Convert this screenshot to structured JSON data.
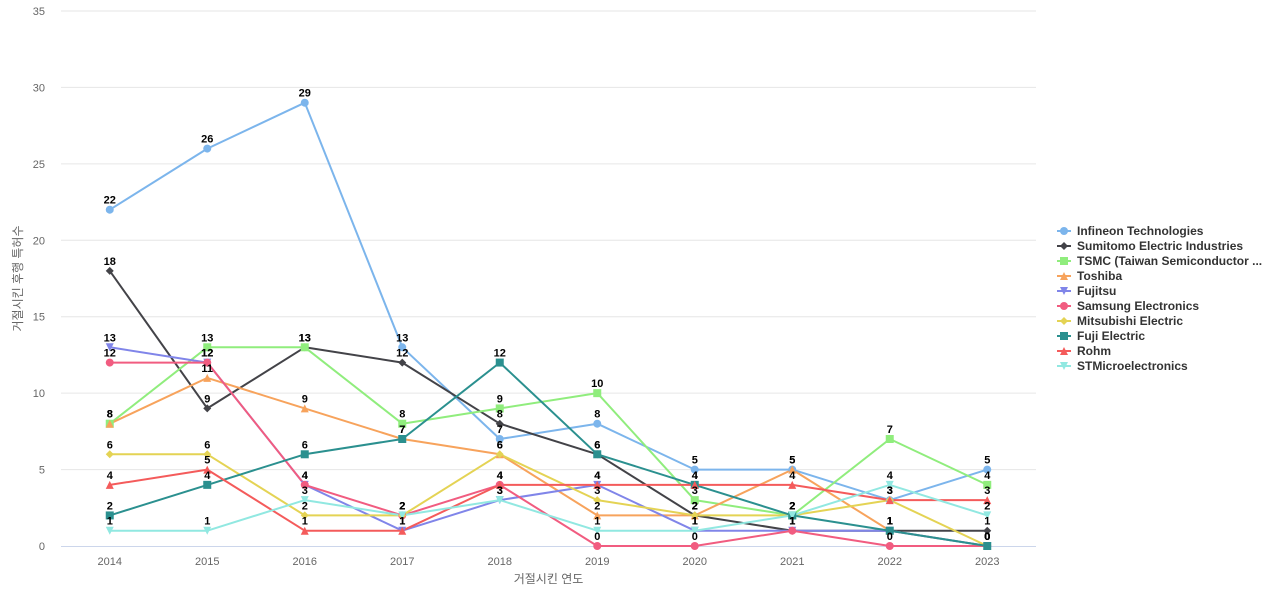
{
  "chart_data": {
    "type": "line",
    "xlabel": "거절시킨 연도",
    "ylabel": "거절시킨 후행 특허수",
    "ylim": [
      0,
      35
    ],
    "yticks": [
      0,
      5,
      10,
      15,
      20,
      25,
      30,
      35
    ],
    "grid": true,
    "legend_position": "right",
    "data_labels": true,
    "categories": [
      "2014",
      "2015",
      "2016",
      "2017",
      "2018",
      "2019",
      "2020",
      "2021",
      "2022",
      "2023"
    ],
    "series": [
      {
        "name": "Infineon Technologies",
        "color": "#7cb5ec",
        "marker": "circle",
        "values": [
          22,
          26,
          29,
          13,
          7,
          8,
          5,
          5,
          3,
          5
        ]
      },
      {
        "name": "Sumitomo Electric Industries",
        "color": "#434348",
        "marker": "diamond",
        "values": [
          18,
          9,
          13,
          12,
          8,
          6,
          2,
          1,
          1,
          1
        ]
      },
      {
        "name": "TSMC (Taiwan Semiconductor ...",
        "color": "#90ed7d",
        "marker": "square",
        "values": [
          8,
          13,
          13,
          8,
          9,
          10,
          3,
          2,
          7,
          4
        ]
      },
      {
        "name": "Toshiba",
        "color": "#f7a35c",
        "marker": "triangle",
        "values": [
          8,
          11,
          9,
          7,
          6,
          2,
          2,
          5,
          1,
          0
        ]
      },
      {
        "name": "Fujitsu",
        "color": "#8085e9",
        "marker": "triangle-down",
        "values": [
          13,
          12,
          4,
          1,
          3,
          4,
          1,
          1,
          1,
          0
        ]
      },
      {
        "name": "Samsung Electronics",
        "color": "#f15c80",
        "marker": "circle",
        "values": [
          12,
          12,
          4,
          2,
          4,
          0,
          0,
          1,
          0,
          0
        ]
      },
      {
        "name": "Mitsubishi Electric",
        "color": "#e4d354",
        "marker": "diamond",
        "values": [
          6,
          6,
          2,
          2,
          6,
          3,
          2,
          2,
          3,
          0
        ]
      },
      {
        "name": "Fuji Electric",
        "color": "#2b908f",
        "marker": "square",
        "values": [
          2,
          4,
          6,
          7,
          12,
          6,
          4,
          2,
          1,
          0
        ]
      },
      {
        "name": "Rohm",
        "color": "#f45b5b",
        "marker": "triangle",
        "values": [
          4,
          5,
          1,
          1,
          4,
          4,
          4,
          4,
          3,
          3
        ]
      },
      {
        "name": "STMicroelectronics",
        "color": "#91e8e1",
        "marker": "triangle-down",
        "values": [
          1,
          1,
          3,
          2,
          3,
          1,
          1,
          2,
          4,
          2
        ]
      }
    ]
  }
}
